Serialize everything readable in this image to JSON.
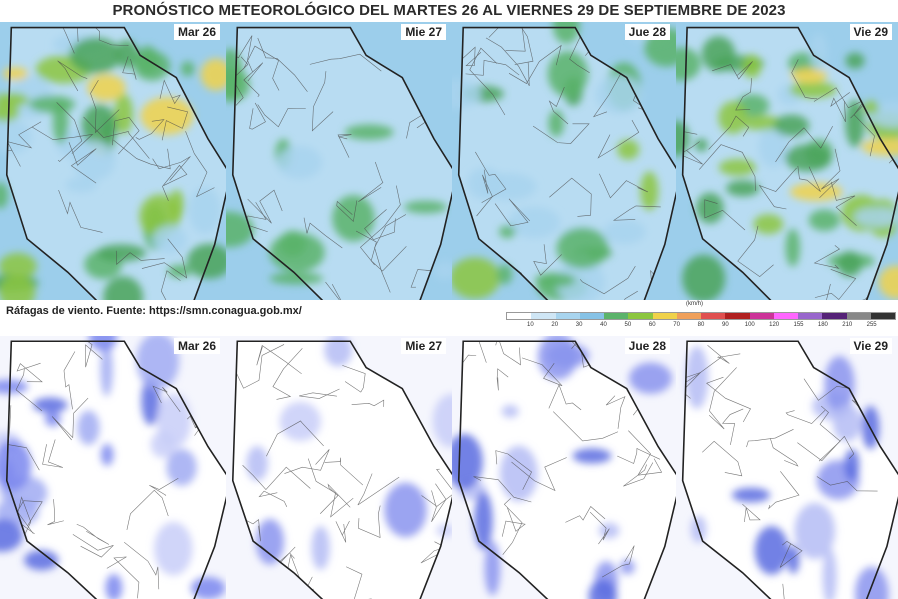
{
  "title": "PRONÓSTICO METEOROLÓGICO DEL MARTES 26 AL VIERNES 29 DE SEPTIEMBRE DE 2023",
  "source_caption": "Ráfagas de viento.  Fuente: https://smn.conagua.gob.mx/",
  "legend": {
    "unit": "(km/h)",
    "ticks": [
      "10",
      "20",
      "30",
      "40",
      "50",
      "60",
      "70",
      "80",
      "90",
      "100",
      "120",
      "155",
      "180",
      "210",
      "255"
    ],
    "colors": [
      "#ffffff",
      "#cfe6f5",
      "#a8d4ee",
      "#86c2e6",
      "#5bb36a",
      "#8cc63f",
      "#f0d24a",
      "#f0a05a",
      "#e05050",
      "#b02020",
      "#cc3399",
      "#ff66ff",
      "#9966cc",
      "#552277",
      "#888888",
      "#333333"
    ]
  },
  "top_row": [
    {
      "label": "Mar 26",
      "intensity": "high",
      "icon": "precipitation-map"
    },
    {
      "label": "Mie 27",
      "intensity": "low",
      "icon": "precipitation-map"
    },
    {
      "label": "Jue 28",
      "intensity": "medium",
      "icon": "precipitation-map"
    },
    {
      "label": "Vie 29",
      "intensity": "high",
      "icon": "precipitation-map"
    }
  ],
  "bottom_row": [
    {
      "label": "Mar 26",
      "intensity": "high",
      "icon": "wind-gust-map"
    },
    {
      "label": "Mie 27",
      "intensity": "low",
      "icon": "wind-gust-map"
    },
    {
      "label": "Jue 28",
      "intensity": "medium",
      "icon": "wind-gust-map"
    },
    {
      "label": "Vie 29",
      "intensity": "medium",
      "icon": "wind-gust-map"
    }
  ]
}
